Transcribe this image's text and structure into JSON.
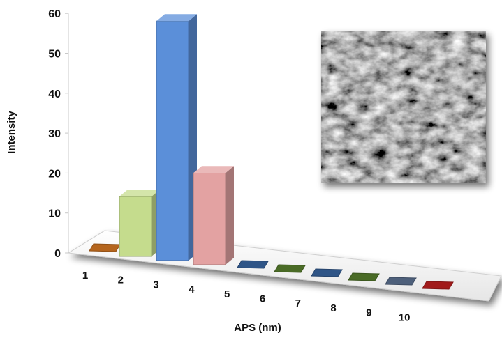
{
  "chart_data": {
    "type": "bar",
    "style": "3d-perspective",
    "categories": [
      "1",
      "2",
      "3",
      "4",
      "5",
      "6",
      "7",
      "8",
      "9",
      "10"
    ],
    "values": [
      0,
      15,
      60,
      23,
      0,
      0,
      0,
      0,
      0,
      0
    ],
    "bar_colors": [
      "#b5651d",
      "#c5dc8d",
      "#5b8fd9",
      "#e3a2a2",
      "#2f5587",
      "#4a6b26",
      "#2f5587",
      "#4a6b26",
      "#4d5f7a",
      "#a11a1a"
    ],
    "title": "",
    "xlabel": "APS (nm)",
    "ylabel": "Intensity",
    "yticks": [
      0,
      10,
      20,
      30,
      40,
      50,
      60
    ],
    "ylim": [
      0,
      60
    ],
    "grid": false,
    "legend": "none",
    "inset": "SEM micrograph (grayscale)"
  }
}
